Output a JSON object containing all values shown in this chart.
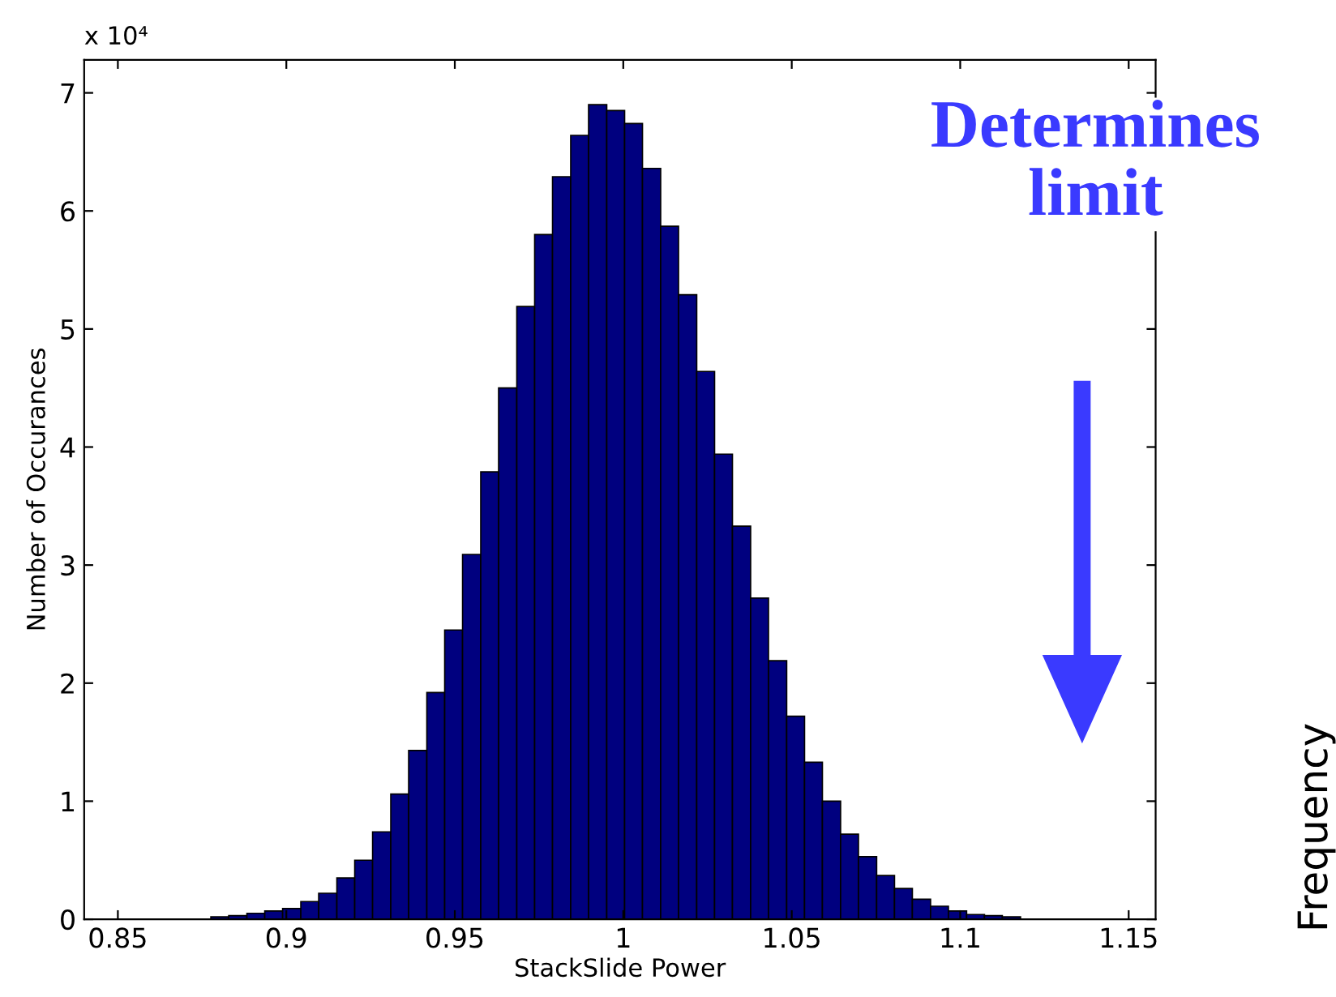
{
  "chart_data": {
    "type": "histogram",
    "xlabel": "StackSlide Power",
    "ylabel": "Number of Occurances",
    "annotations": [
      "x 10⁴",
      "Determines\nlimit",
      "Frequency"
    ],
    "bins": [
      0.8669,
      0.8722,
      0.8776,
      0.8829,
      0.8883,
      0.8936,
      0.8989,
      0.9043,
      0.9096,
      0.915,
      0.9203,
      0.9256,
      0.931,
      0.9363,
      0.9417,
      0.947,
      0.9523,
      0.9577,
      0.963,
      0.9684,
      0.9737,
      0.979,
      0.9844,
      0.9897,
      0.9951,
      1.0004,
      1.0057,
      1.0111,
      1.0164,
      1.0218,
      1.0271,
      1.0324,
      1.0378,
      1.0431,
      1.0485,
      1.0538,
      1.0591,
      1.0645,
      1.0698,
      1.0752,
      1.0805,
      1.0858,
      1.0912,
      1.0965,
      1.1019,
      1.1072,
      1.1125,
      1.1179,
      1.1232,
      1.1286,
      1.1339
    ],
    "values": [
      null,
      null,
      0.02,
      0.03,
      0.05,
      0.07,
      0.09,
      0.15,
      0.22,
      0.35,
      0.5,
      0.74,
      1.06,
      1.43,
      1.92,
      2.45,
      3.09,
      3.79,
      4.5,
      5.19,
      5.8,
      6.29,
      6.64,
      6.9,
      6.85,
      6.74,
      6.36,
      5.87,
      5.29,
      4.64,
      3.94,
      3.33,
      2.72,
      2.19,
      1.72,
      1.33,
      1.0,
      0.72,
      0.53,
      0.37,
      0.26,
      0.17,
      0.11,
      0.07,
      0.04,
      0.03,
      0.02,
      null,
      null,
      null
    ],
    "color": "#00007f",
    "xlim": [
      0.84,
      1.158
    ],
    "ylim": [
      0,
      7.28
    ],
    "xticks": [
      0.85,
      0.9,
      0.95,
      1,
      1.05,
      1.1,
      1.15
    ],
    "yticks": [
      0,
      1,
      2,
      3,
      4,
      5,
      6,
      7
    ],
    "grid": false
  }
}
